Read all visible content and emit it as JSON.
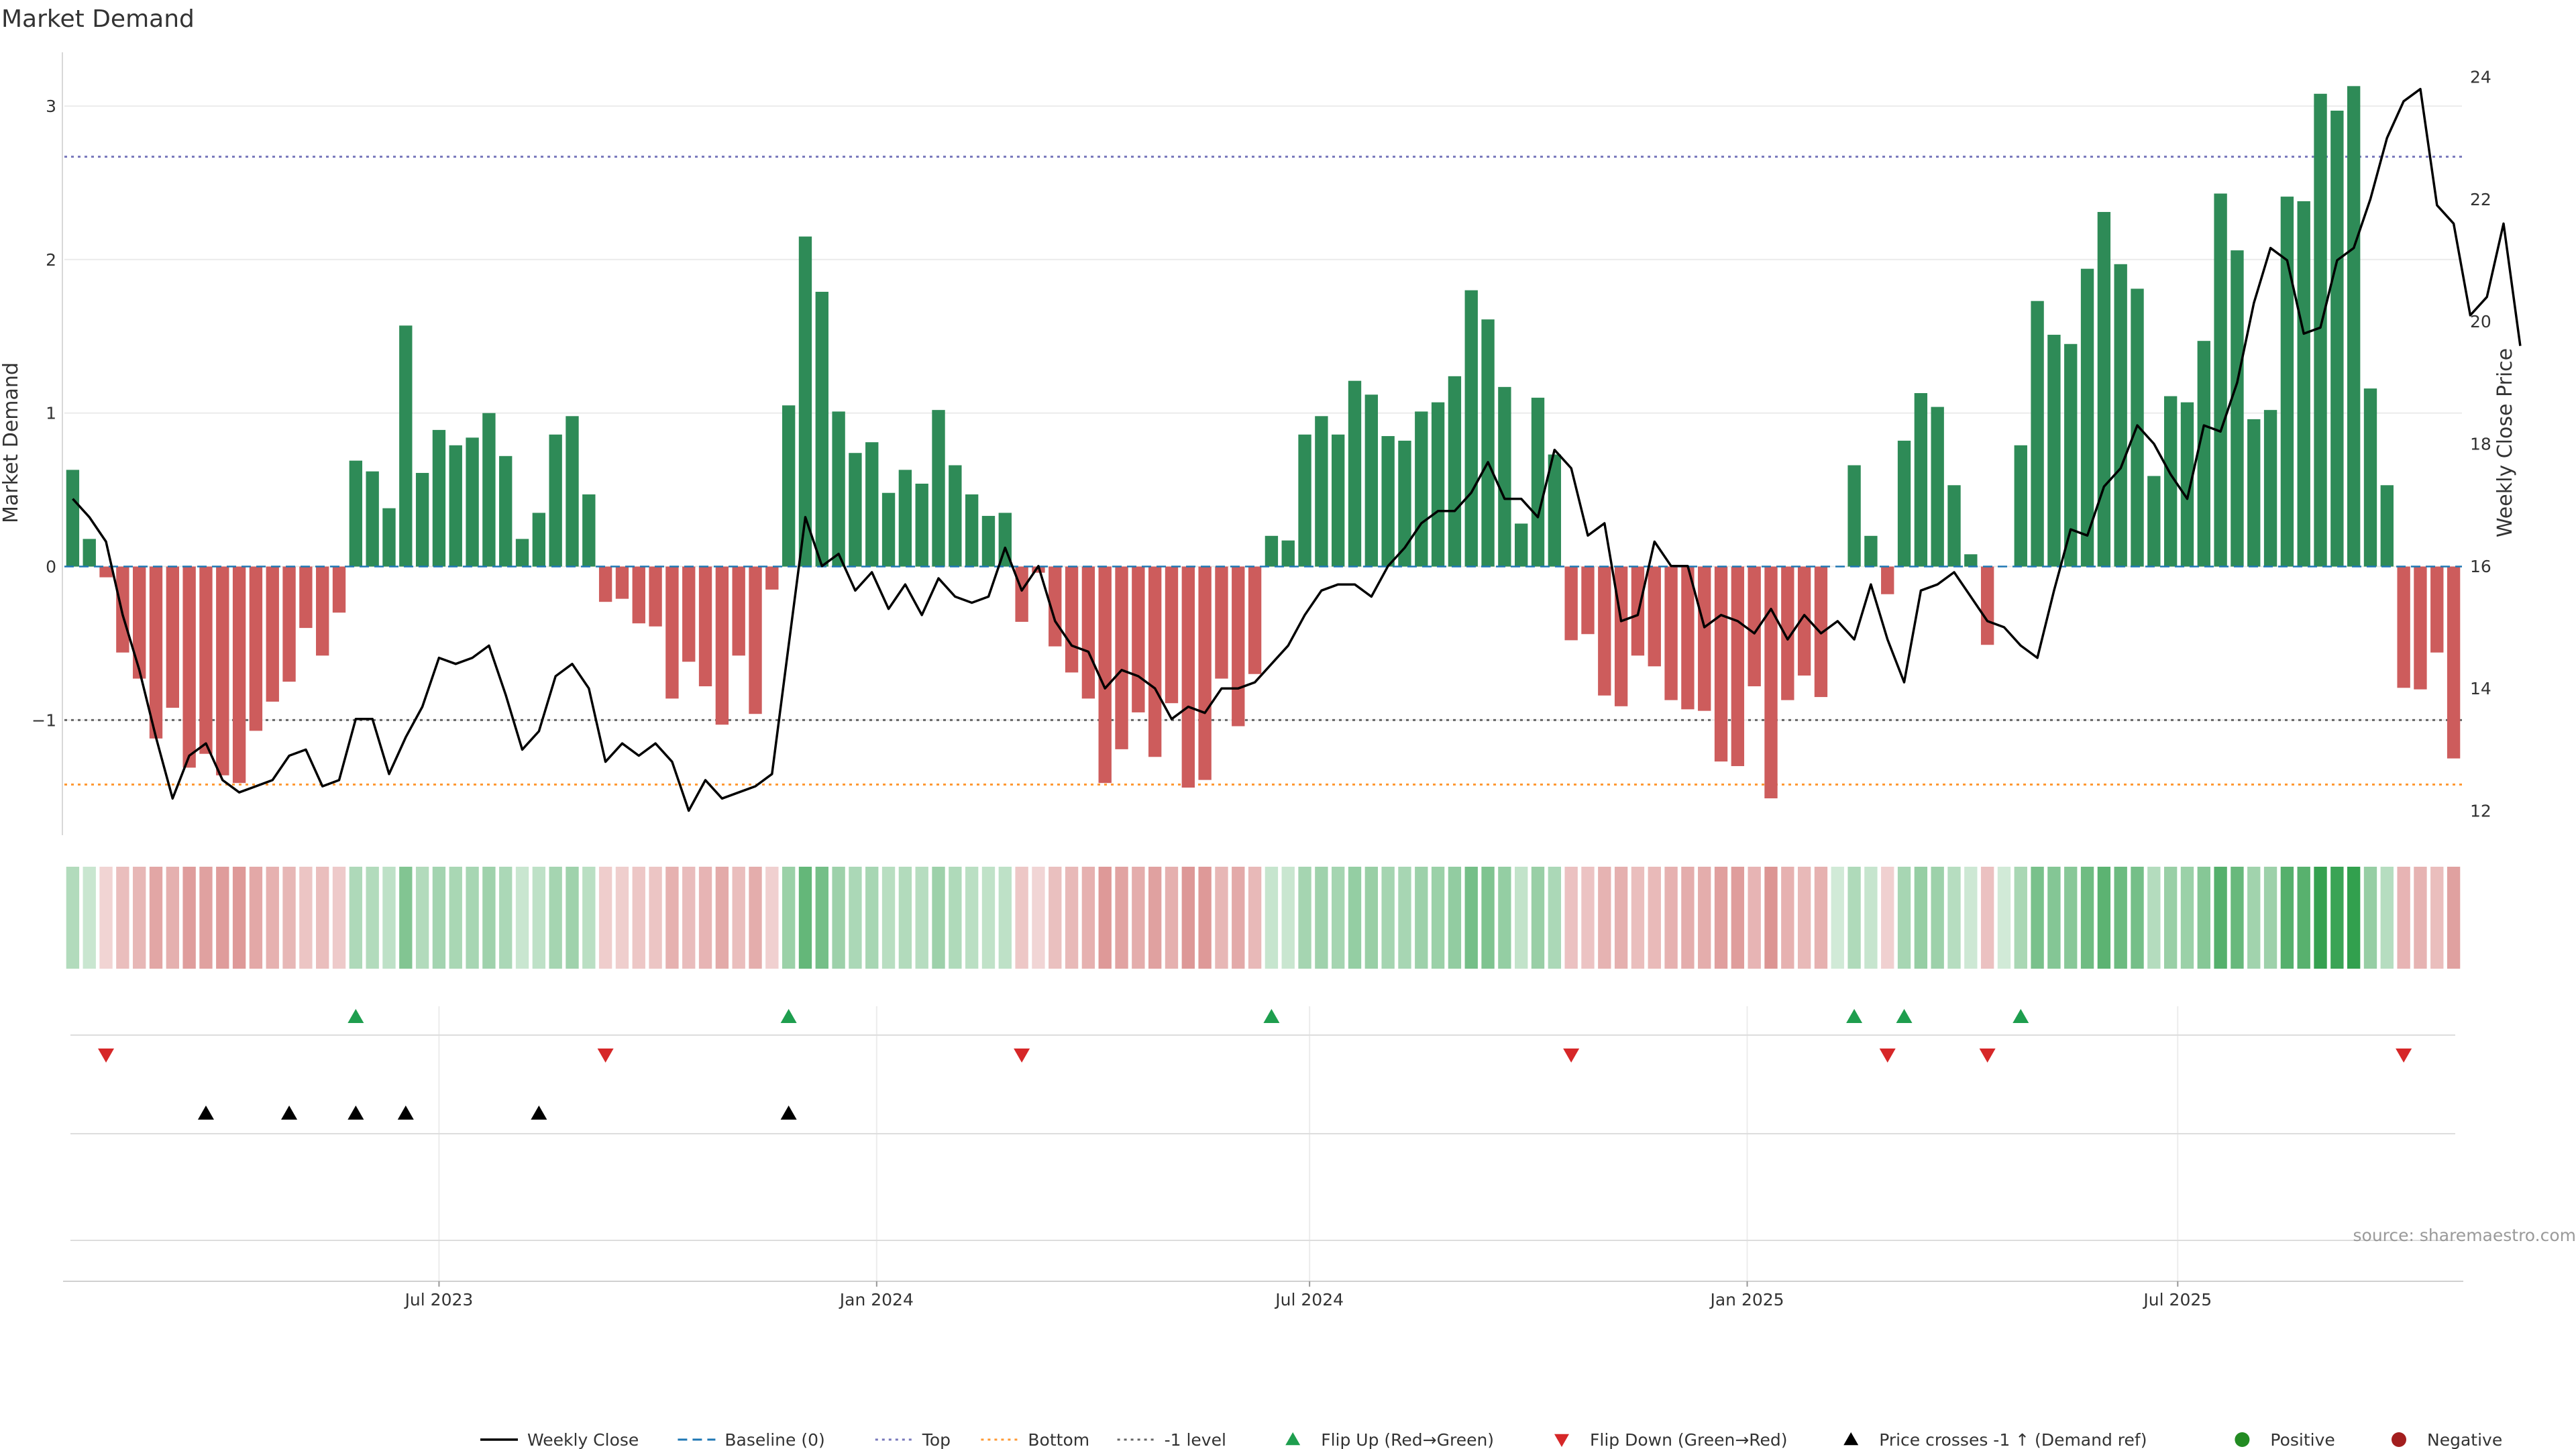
{
  "chart_data": {
    "type": "bar",
    "title": "Market Demand",
    "ylabel": "Market Demand",
    "y2label": "Weekly Close Price",
    "ylim": [
      -1.75,
      3.35
    ],
    "y2lim": [
      11.6,
      24.4
    ],
    "yticks": [
      -1,
      0,
      1,
      2,
      3
    ],
    "y2ticks": [
      12,
      14,
      16,
      18,
      20,
      22,
      24
    ],
    "x_start": "2023-01-28",
    "x_step_days": 7,
    "xticks": [
      {
        "label": "Jul 2023",
        "date": "2023-07-01"
      },
      {
        "label": "Jan 2024",
        "date": "2024-01-01"
      },
      {
        "label": "Jul 2024",
        "date": "2024-07-01"
      },
      {
        "label": "Jan 2025",
        "date": "2025-01-01"
      },
      {
        "label": "Jul 2025",
        "date": "2025-07-01"
      }
    ],
    "reference_lines": {
      "top": 2.67,
      "minus_one": -1.0,
      "bottom": -1.42
    },
    "demand": [
      0.63,
      0.18,
      -0.07,
      -0.56,
      -0.73,
      -1.12,
      -0.92,
      -1.31,
      -1.22,
      -1.36,
      -1.41,
      -1.07,
      -0.88,
      -0.75,
      -0.4,
      -0.58,
      -0.3,
      0.69,
      0.62,
      0.38,
      1.57,
      0.61,
      0.89,
      0.79,
      0.84,
      1.0,
      0.72,
      0.18,
      0.35,
      0.86,
      0.98,
      0.47,
      -0.23,
      -0.21,
      -0.37,
      -0.39,
      -0.86,
      -0.62,
      -0.78,
      -1.03,
      -0.58,
      -0.96,
      -0.15,
      1.05,
      2.15,
      1.79,
      1.01,
      0.74,
      0.81,
      0.48,
      0.63,
      0.54,
      1.02,
      0.66,
      0.47,
      0.33,
      0.35,
      -0.36,
      -0.04,
      -0.52,
      -0.69,
      -0.86,
      -1.41,
      -1.19,
      -0.95,
      -1.24,
      -0.89,
      -1.44,
      -1.39,
      -0.73,
      -1.04,
      -0.7,
      0.2,
      0.17,
      0.86,
      0.98,
      0.86,
      1.21,
      1.12,
      0.85,
      0.82,
      1.01,
      1.07,
      1.24,
      1.8,
      1.61,
      1.17,
      0.28,
      1.1,
      0.73,
      -0.48,
      -0.44,
      -0.84,
      -0.91,
      -0.58,
      -0.65,
      -0.87,
      -0.93,
      -0.94,
      -1.27,
      -1.3,
      -0.78,
      -1.51,
      -0.87,
      -0.71,
      -0.85,
      0.0,
      0.66,
      0.2,
      -0.18,
      0.82,
      1.13,
      1.04,
      0.53,
      0.08,
      -0.51,
      0.0,
      0.79,
      1.73,
      1.51,
      1.45,
      1.94,
      2.31,
      1.97,
      1.81,
      0.59,
      1.11,
      1.07,
      1.47,
      2.43,
      2.06,
      0.96,
      1.02,
      2.41,
      2.38,
      3.08,
      2.97,
      3.13,
      1.16,
      0.53,
      -0.79,
      -0.8,
      -0.56,
      -1.25
    ],
    "close": [
      17.1,
      16.8,
      16.4,
      15.2,
      14.3,
      13.2,
      12.2,
      12.9,
      13.1,
      12.5,
      12.3,
      12.4,
      12.5,
      12.9,
      13.0,
      12.4,
      12.5,
      13.5,
      13.5,
      12.6,
      13.2,
      13.7,
      14.5,
      14.4,
      14.5,
      14.7,
      13.9,
      13.0,
      13.3,
      14.2,
      14.4,
      14.0,
      12.8,
      13.1,
      12.9,
      13.1,
      12.8,
      12.0,
      12.5,
      12.2,
      12.3,
      12.4,
      12.6,
      14.7,
      16.8,
      16.0,
      16.2,
      15.6,
      15.9,
      15.3,
      15.7,
      15.2,
      15.8,
      15.5,
      15.4,
      15.5,
      16.3,
      15.6,
      16.0,
      15.1,
      14.7,
      14.6,
      14.0,
      14.3,
      14.2,
      14.0,
      13.5,
      13.7,
      13.6,
      14.0,
      14.0,
      14.1,
      14.4,
      14.7,
      15.2,
      15.6,
      15.7,
      15.7,
      15.5,
      16.0,
      16.3,
      16.7,
      16.9,
      16.9,
      17.2,
      17.7,
      17.1,
      17.1,
      16.8,
      17.9,
      17.6,
      16.5,
      16.7,
      15.1,
      15.2,
      16.4,
      16.0,
      16.0,
      15.0,
      15.2,
      15.1,
      14.9,
      15.3,
      14.8,
      15.2,
      14.9,
      15.1,
      14.8,
      15.7,
      14.8,
      14.1,
      15.6,
      15.7,
      15.9,
      15.5,
      15.1,
      15.0,
      14.7,
      14.5,
      15.6,
      16.6,
      16.5,
      17.3,
      17.6,
      18.3,
      18.0,
      17.5,
      17.1,
      18.3,
      18.2,
      19.0,
      20.3,
      21.2,
      21.0,
      19.8,
      19.9,
      21.0,
      21.2,
      22.0,
      23.0,
      23.6,
      23.8,
      21.9,
      21.6,
      20.1,
      20.4,
      21.6,
      19.6
    ],
    "flip_up_weeks": [
      17,
      43,
      72,
      107,
      110,
      117
    ],
    "flip_down_weeks": [
      2,
      32,
      57,
      90,
      109,
      115,
      140
    ],
    "price_cross_weeks": [
      8,
      13,
      17,
      20,
      28,
      43
    ],
    "heat_colors": {
      "positive": "#2e9e4a",
      "negative": "#c44a48"
    },
    "colors": {
      "positive_bar": "#2e8b57",
      "negative_bar": "#cd5c5c",
      "close_line": "#000000",
      "top_line": "#7777bb",
      "bottom_line": "#ff9933",
      "minus_one_line": "#666666",
      "baseline": "#1f77b4",
      "flip_up": "#1e9e4e",
      "flip_down": "#d62728",
      "cross": "#000000",
      "positive_dot": "#228b22",
      "negative_dot": "#a31e1e"
    },
    "legend": [
      {
        "label": "Weekly Close",
        "kind": "line",
        "color": "#000000"
      },
      {
        "label": "Baseline (0)",
        "kind": "dash",
        "color": "#1f77b4"
      },
      {
        "label": "Top",
        "kind": "dot",
        "color": "#7777bb"
      },
      {
        "label": "Bottom",
        "kind": "dot",
        "color": "#ff9933"
      },
      {
        "label": "-1 level",
        "kind": "dot",
        "color": "#666666"
      },
      {
        "label": "Flip Up (Red→Green)",
        "kind": "up",
        "color": "#1e9e4e"
      },
      {
        "label": "Flip Down (Green→Red)",
        "kind": "down",
        "color": "#d62728"
      },
      {
        "label": "Price crosses -1 ↑ (Demand ref)",
        "kind": "up",
        "color": "#000000"
      },
      {
        "label": "Positive",
        "kind": "circle",
        "color": "#228b22"
      },
      {
        "label": "Negative",
        "kind": "circle",
        "color": "#a31e1e"
      }
    ],
    "legend_position": "bottom",
    "source": "source: sharemaestro.com"
  }
}
